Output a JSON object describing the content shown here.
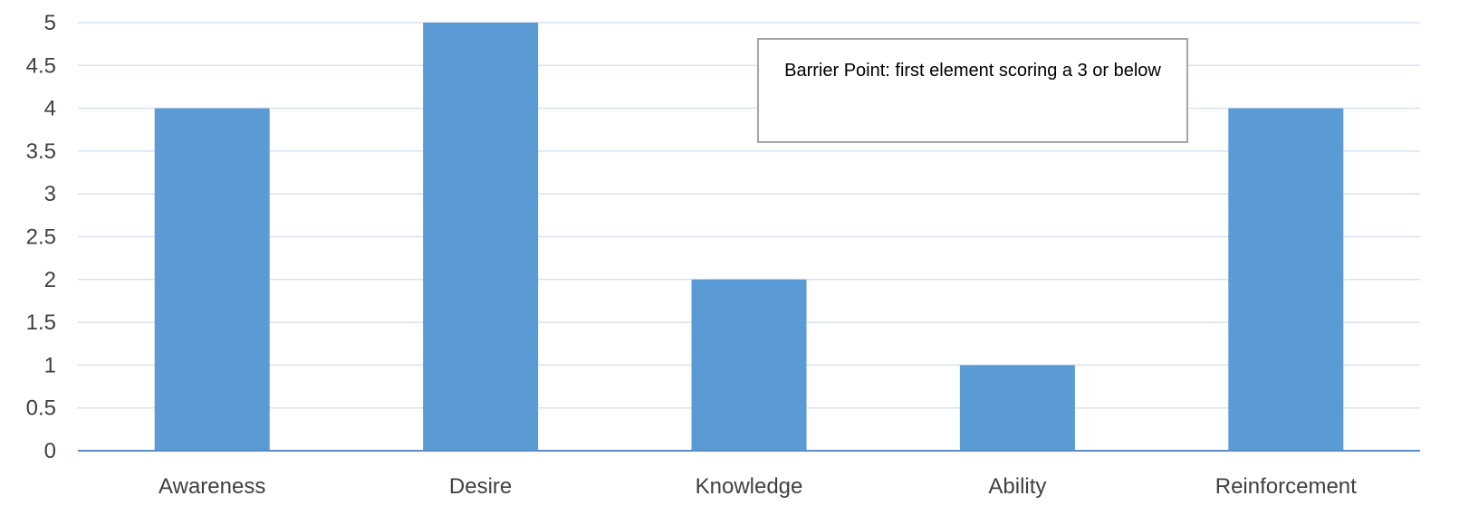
{
  "chart_data": {
    "type": "bar",
    "categories": [
      "Awareness",
      "Desire",
      "Knowledge",
      "Ability",
      "Reinforcement"
    ],
    "series": [
      {
        "values": [
          4,
          5,
          2,
          1,
          4
        ]
      }
    ],
    "title": "",
    "xlabel": "",
    "ylabel": "",
    "ylim": [
      0,
      5
    ],
    "yticks": [
      "0",
      "0.5",
      "1",
      "1.5",
      "2",
      "2.5",
      "3",
      "3.5",
      "4",
      "4.5",
      "5"
    ],
    "grid": true,
    "legend": "none",
    "colors": {
      "bar": "#5b9bd5",
      "grid": "#d9e2ec",
      "axis": "#5b8dc9",
      "text": "#404040"
    },
    "annotation": {
      "text": "Barrier Point: first element scoring a 3 or below"
    }
  }
}
